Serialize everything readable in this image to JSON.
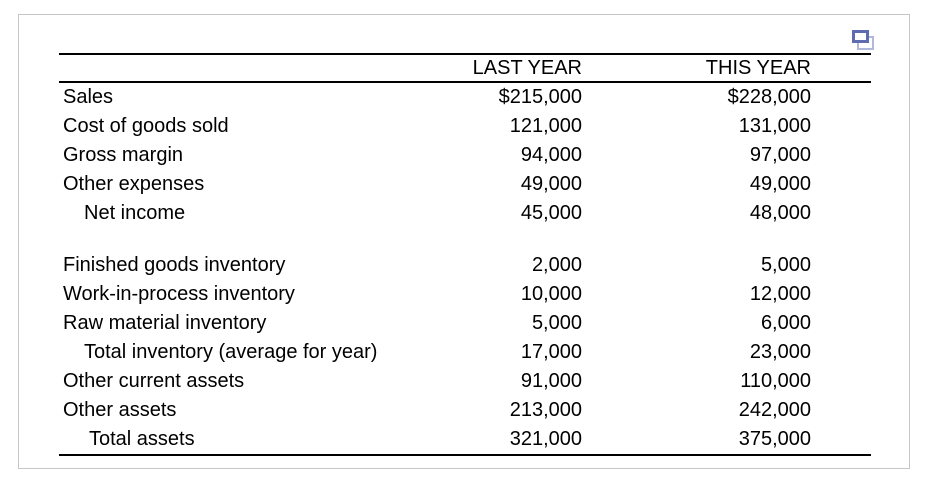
{
  "colors": {
    "text": "#000000",
    "rule": "#000000",
    "card_border": "#c6c6c6",
    "icon_front": "#5f6db0",
    "icon_back": "#b0b8dc"
  },
  "toolbar": {
    "copy_icon": "copy-icon"
  },
  "table": {
    "headers": {
      "label": "",
      "last_year": "LAST YEAR",
      "this_year": "THIS YEAR"
    },
    "sections": [
      {
        "rows": [
          {
            "label": "Sales",
            "last_year": "$215,000",
            "this_year": "$228,000",
            "indent": 0
          },
          {
            "label": "Cost of goods sold",
            "last_year": "121,000",
            "this_year": "131,000",
            "indent": 0
          },
          {
            "label": "Gross margin",
            "last_year": "94,000",
            "this_year": "97,000",
            "indent": 0
          },
          {
            "label": "Other expenses",
            "last_year": "49,000",
            "this_year": "49,000",
            "indent": 0
          },
          {
            "label": "Net income",
            "last_year": "45,000",
            "this_year": "48,000",
            "indent": 1
          }
        ]
      },
      {
        "rows": [
          {
            "label": "Finished goods inventory",
            "last_year": "2,000",
            "this_year": "5,000",
            "indent": 0
          },
          {
            "label": "Work-in-process inventory",
            "last_year": "10,000",
            "this_year": "12,000",
            "indent": 0
          },
          {
            "label": "Raw material inventory",
            "last_year": "5,000",
            "this_year": "6,000",
            "indent": 0
          },
          {
            "label": "Total inventory (average for year)",
            "last_year": "17,000",
            "this_year": "23,000",
            "indent": 1
          },
          {
            "label": "Other current assets",
            "last_year": "91,000",
            "this_year": "110,000",
            "indent": 0
          },
          {
            "label": "Other assets",
            "last_year": "213,000",
            "this_year": "242,000",
            "indent": 0
          },
          {
            "label": "Total assets",
            "last_year": "321,000",
            "this_year": "375,000",
            "indent": 2
          }
        ]
      }
    ]
  }
}
